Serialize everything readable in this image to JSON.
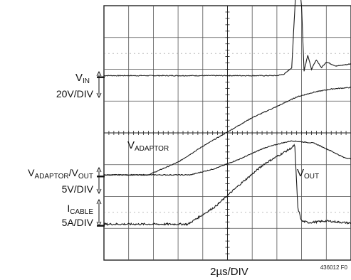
{
  "chart_data": {
    "type": "line",
    "title": "",
    "xlabel": "2µs/DIV",
    "ylabel": "",
    "figure_id": "436012 F0",
    "grid": true,
    "divisions": {
      "x": 10,
      "y": 8
    },
    "x_unit": "µs",
    "x_per_div": 2,
    "xlim": [
      0,
      20
    ],
    "ylim_div": [
      0,
      8
    ],
    "channels": [
      {
        "id": "vin",
        "name_main": "V",
        "name_sub": "IN",
        "scale": "20V/DIV",
        "ground_div": 5.75,
        "points": [
          [
            0,
            0.05
          ],
          [
            7.0,
            0.05
          ],
          [
            7.3,
            0.1
          ],
          [
            7.6,
            0.3
          ],
          [
            7.75,
            2.5
          ],
          [
            7.9,
            3.15
          ],
          [
            8.0,
            2.2
          ],
          [
            8.1,
            0.2
          ],
          [
            8.25,
            0.7
          ],
          [
            8.4,
            0.25
          ],
          [
            8.6,
            0.55
          ],
          [
            8.8,
            0.3
          ],
          [
            9.0,
            0.48
          ],
          [
            9.4,
            0.35
          ],
          [
            10,
            0.42
          ]
        ]
      },
      {
        "id": "vadaptor",
        "name_main": "V",
        "name_sub": "ADAPTOR",
        "scale": "",
        "ground_div": 2.63,
        "points": [
          [
            0,
            0.05
          ],
          [
            1.8,
            0.05
          ],
          [
            3.0,
            0.45
          ],
          [
            4.0,
            0.95
          ],
          [
            5.0,
            1.4
          ],
          [
            6.0,
            1.85
          ],
          [
            7.0,
            2.2
          ],
          [
            7.8,
            2.5
          ],
          [
            8.5,
            2.65
          ],
          [
            9.2,
            2.75
          ],
          [
            10,
            2.8
          ]
        ]
      },
      {
        "id": "vout",
        "name_main": "V",
        "name_sub": "OUT",
        "scale": "",
        "ground_div": 2.63,
        "points": [
          [
            0,
            0.05
          ],
          [
            3.5,
            0.05
          ],
          [
            4.5,
            0.25
          ],
          [
            5.5,
            0.55
          ],
          [
            6.5,
            0.9
          ],
          [
            7.2,
            1.05
          ],
          [
            7.6,
            1.12
          ],
          [
            8.5,
            1.05
          ],
          [
            9.2,
            0.8
          ],
          [
            9.7,
            0.6
          ],
          [
            10,
            0.55
          ]
        ]
      },
      {
        "id": "icable",
        "name_main": "I",
        "name_sub": "CABLE",
        "scale": "5A/DIV",
        "ground_div": 1.08,
        "points": [
          [
            0,
            0.05
          ],
          [
            3.4,
            0.05
          ],
          [
            4.5,
            0.6
          ],
          [
            5.5,
            1.3
          ],
          [
            6.5,
            1.95
          ],
          [
            7.6,
            2.45
          ],
          [
            7.72,
            2.55
          ],
          [
            7.85,
            0.55
          ],
          [
            8.0,
            0.15
          ],
          [
            8.3,
            0.1
          ],
          [
            9.0,
            0.15
          ],
          [
            10,
            0.08
          ]
        ]
      }
    ]
  },
  "labels": {
    "vin": {
      "main": "V",
      "sub": "IN",
      "scale": "20V/DIV"
    },
    "vadaptor_trace": {
      "main": "V",
      "sub": "ADAPTOR"
    },
    "vout_trace": {
      "main": "V",
      "sub": "OUT"
    },
    "mid": {
      "main1": "V",
      "sub1": "ADAPTOR",
      "sep": "/V",
      "sub2": "OUT",
      "scale": "5V/DIV"
    },
    "icable": {
      "main": "I",
      "sub": "CABLE",
      "scale": "5A/DIV"
    },
    "xscale": "2µs/DIV",
    "figid": "436012 F0"
  }
}
